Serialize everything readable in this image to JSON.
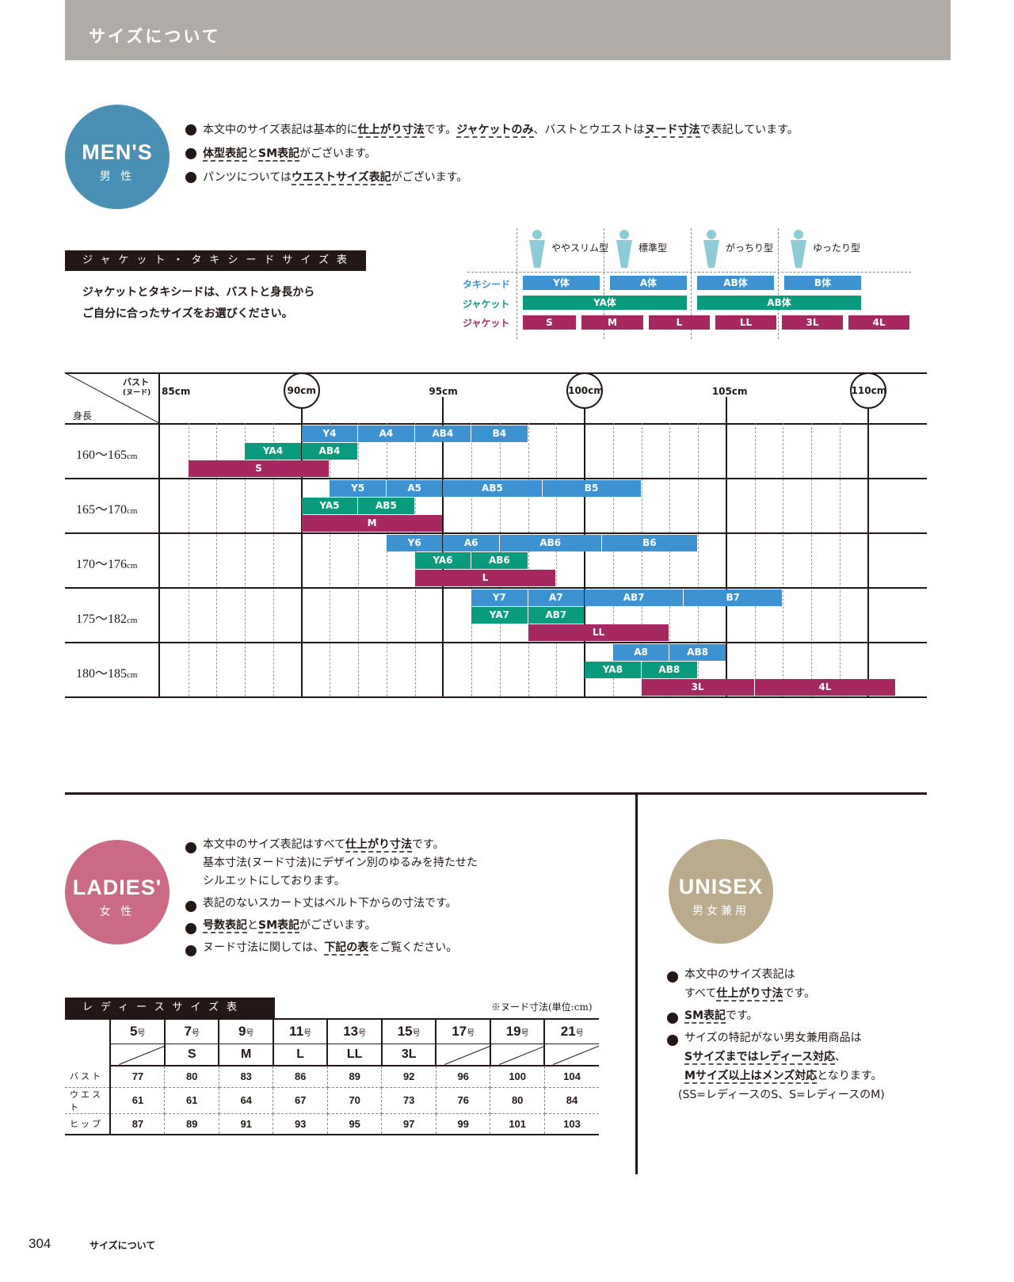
{
  "header": {
    "title": "サイズについて"
  },
  "mens": {
    "circle": {
      "en": "MEN'S",
      "jp": "男 性",
      "color": "#4a8fb4"
    },
    "bullets": [
      [
        {
          "t": "本文中のサイズ表記は基本的に"
        },
        {
          "t": "仕上がり寸法",
          "b": 1
        },
        {
          "t": "です。"
        },
        {
          "t": "ジャケットのみ",
          "b": 1
        },
        {
          "t": "、バストとウエストは"
        },
        {
          "t": "ヌード寸法",
          "b": 1
        },
        {
          "t": "で表記しています。"
        }
      ],
      [
        {
          "t": "体型表記",
          "b": 1
        },
        {
          "t": "と"
        },
        {
          "t": "SM表記",
          "b": 1
        },
        {
          "t": "がございます。"
        }
      ],
      [
        {
          "t": "パンツについては"
        },
        {
          "t": "ウエストサイズ表記",
          "b": 1
        },
        {
          "t": "がございます。"
        }
      ]
    ],
    "section_label": "ジャケット・タキシードサイズ表",
    "intro_line1": "ジャケットとタキシードは、バストと身長から",
    "intro_line2": "ご自分に合ったサイズをお選びください。",
    "body_types": [
      "ややスリム型",
      "標準型",
      "がっちり型",
      "ゆったり型"
    ],
    "legend_rows": {
      "tuxedo": "タキシード",
      "jacket1": "ジャケット",
      "jacket2": "ジャケット"
    },
    "legend_tuxedo": [
      "Y体",
      "A体",
      "AB体",
      "B体"
    ],
    "legend_jacket": [
      "YA体",
      "AB体"
    ],
    "legend_sm": [
      "S",
      "M",
      "L",
      "LL",
      "3L",
      "4L"
    ]
  },
  "chart_data": {
    "type": "table",
    "corner_top": "バスト",
    "corner_top_sub": "(ヌード)",
    "corner_bottom": "身長",
    "x_ticks": [
      {
        "v": 85,
        "label": "85cm",
        "circle": false
      },
      {
        "v": 90,
        "label": "90cm",
        "circle": true
      },
      {
        "v": 95,
        "label": "95cm",
        "circle": false
      },
      {
        "v": 100,
        "label": "100cm",
        "circle": true
      },
      {
        "v": 105,
        "label": "105cm",
        "circle": false
      },
      {
        "v": 110,
        "label": "110cm",
        "circle": true
      }
    ],
    "xlim": [
      85,
      111
    ],
    "rows": [
      {
        "label": "160〜165",
        "unit": "cm",
        "bars": [
          [
            {
              "c": "blue",
              "x0": 90,
              "x1": 92,
              "t": "Y4"
            },
            {
              "c": "blue",
              "x0": 92,
              "x1": 94,
              "t": "A4"
            },
            {
              "c": "blue",
              "x0": 94,
              "x1": 96,
              "t": "AB4"
            },
            {
              "c": "blue",
              "x0": 96,
              "x1": 98,
              "t": "B4"
            }
          ],
          [
            {
              "c": "green",
              "x0": 88,
              "x1": 90,
              "t": "YA4"
            },
            {
              "c": "green",
              "x0": 90,
              "x1": 92,
              "t": "AB4"
            }
          ],
          [
            {
              "c": "mag",
              "x0": 86,
              "x1": 91,
              "t": "S"
            }
          ]
        ]
      },
      {
        "label": "165〜170",
        "unit": "cm",
        "bars": [
          [
            {
              "c": "blue",
              "x0": 91,
              "x1": 93,
              "t": "Y5"
            },
            {
              "c": "blue",
              "x0": 93,
              "x1": 95,
              "t": "A5"
            },
            {
              "c": "blue",
              "x0": 95,
              "x1": 98.5,
              "t": "AB5"
            },
            {
              "c": "blue",
              "x0": 98.5,
              "x1": 102,
              "t": "B5"
            }
          ],
          [
            {
              "c": "green",
              "x0": 90,
              "x1": 92,
              "t": "YA5"
            },
            {
              "c": "green",
              "x0": 92,
              "x1": 94,
              "t": "AB5"
            }
          ],
          [
            {
              "c": "mag",
              "x0": 90,
              "x1": 95,
              "t": "M"
            }
          ]
        ]
      },
      {
        "label": "170〜176",
        "unit": "cm",
        "bars": [
          [
            {
              "c": "blue",
              "x0": 93,
              "x1": 95,
              "t": "Y6"
            },
            {
              "c": "blue",
              "x0": 95,
              "x1": 97,
              "t": "A6"
            },
            {
              "c": "blue",
              "x0": 97,
              "x1": 100.6,
              "t": "AB6"
            },
            {
              "c": "blue",
              "x0": 100.6,
              "x1": 104,
              "t": "B6"
            }
          ],
          [
            {
              "c": "green",
              "x0": 94,
              "x1": 96,
              "t": "YA6"
            },
            {
              "c": "green",
              "x0": 96,
              "x1": 98,
              "t": "AB6"
            }
          ],
          [
            {
              "c": "mag",
              "x0": 94,
              "x1": 99,
              "t": "L"
            }
          ]
        ]
      },
      {
        "label": "175〜182",
        "unit": "cm",
        "bars": [
          [
            {
              "c": "blue",
              "x0": 96,
              "x1": 98,
              "t": "Y7"
            },
            {
              "c": "blue",
              "x0": 98,
              "x1": 100,
              "t": "A7"
            },
            {
              "c": "blue",
              "x0": 100,
              "x1": 103.5,
              "t": "AB7"
            },
            {
              "c": "blue",
              "x0": 103.5,
              "x1": 107,
              "t": "B7"
            }
          ],
          [
            {
              "c": "green",
              "x0": 96,
              "x1": 98,
              "t": "YA7"
            },
            {
              "c": "green",
              "x0": 98,
              "x1": 100,
              "t": "AB7"
            }
          ],
          [
            {
              "c": "mag",
              "x0": 98,
              "x1": 103,
              "t": "LL"
            }
          ]
        ]
      },
      {
        "label": "180〜185",
        "unit": "cm",
        "bars": [
          [
            {
              "c": "blue",
              "x0": 101,
              "x1": 103,
              "t": "A8"
            },
            {
              "c": "blue",
              "x0": 103,
              "x1": 105,
              "t": "AB8"
            }
          ],
          [
            {
              "c": "green",
              "x0": 100,
              "x1": 102,
              "t": "YA8"
            },
            {
              "c": "green",
              "x0": 102,
              "x1": 104,
              "t": "AB8"
            }
          ],
          [
            {
              "c": "mag",
              "x0": 102,
              "x1": 106,
              "t": "3L"
            },
            {
              "c": "mag",
              "x0": 106,
              "x1": 111,
              "t": "4L"
            }
          ]
        ]
      }
    ]
  },
  "ladies": {
    "circle": {
      "en": "LADIES'",
      "jp": "女 性",
      "color": "#cb6a84"
    },
    "bullets": [
      [
        {
          "t": "本文中のサイズ表記はすべて"
        },
        {
          "t": "仕上がり寸法",
          "b": 1
        },
        {
          "t": "です。"
        }
      ],
      [
        {
          "t": "表記のないスカート丈はベルト下からの寸法です。"
        }
      ],
      [
        {
          "t": "号数表記",
          "b": 1
        },
        {
          "t": "と"
        },
        {
          "t": "SM表記",
          "b": 1
        },
        {
          "t": "がございます。"
        }
      ],
      [
        {
          "t": "ヌード寸法に関しては、"
        },
        {
          "t": "下記の表",
          "b": 1
        },
        {
          "t": "をご覧ください。"
        }
      ]
    ],
    "bullet1_cont1": "基本寸法(ヌード寸法)にデザイン別のゆるみを持たせた",
    "bullet1_cont2": "シルエットにしております。",
    "table_label": "レディースサイズ表",
    "note": "※ヌード寸法(単位:cm)",
    "sizes": [
      "5",
      "7",
      "9",
      "11",
      "13",
      "15",
      "17",
      "19",
      "21"
    ],
    "size_suffix": "号",
    "sm": [
      "",
      "S",
      "M",
      "L",
      "LL",
      "3L",
      "",
      "",
      ""
    ],
    "rows": [
      {
        "label": "バスト",
        "values": [
          "77",
          "80",
          "83",
          "86",
          "89",
          "92",
          "96",
          "100",
          "104"
        ]
      },
      {
        "label": "ウエスト",
        "values": [
          "61",
          "61",
          "64",
          "67",
          "70",
          "73",
          "76",
          "80",
          "84"
        ]
      },
      {
        "label": "ヒップ",
        "values": [
          "87",
          "89",
          "91",
          "93",
          "95",
          "97",
          "99",
          "101",
          "103"
        ]
      }
    ]
  },
  "unisex": {
    "circle": {
      "en": "UNISEX",
      "jp": "男女兼用",
      "color": "#b9ab8b"
    },
    "bullets": [
      [
        {
          "t": "本文中のサイズ表記は"
        }
      ],
      [
        {
          "t": "SM表記",
          "b": 1
        },
        {
          "t": "です。"
        }
      ],
      [
        {
          "t": "サイズの特記がない男女兼用商品は"
        }
      ]
    ],
    "b1_cont": [
      {
        "t": "すべて"
      },
      {
        "t": "仕上がり寸法",
        "b": 1
      },
      {
        "t": "です。"
      }
    ],
    "b3_cont1": [
      {
        "t": "Sサイズまではレディース対応",
        "b": 1
      },
      {
        "t": "、"
      }
    ],
    "b3_cont2": [
      {
        "t": "Mサイズ以上はメンズ対応",
        "b": 1
      },
      {
        "t": "となります。"
      }
    ],
    "b3_cont3": "(SS=レディースのS、S=レディースのM)"
  },
  "footer": {
    "page": "304",
    "title": "サイズについて"
  }
}
